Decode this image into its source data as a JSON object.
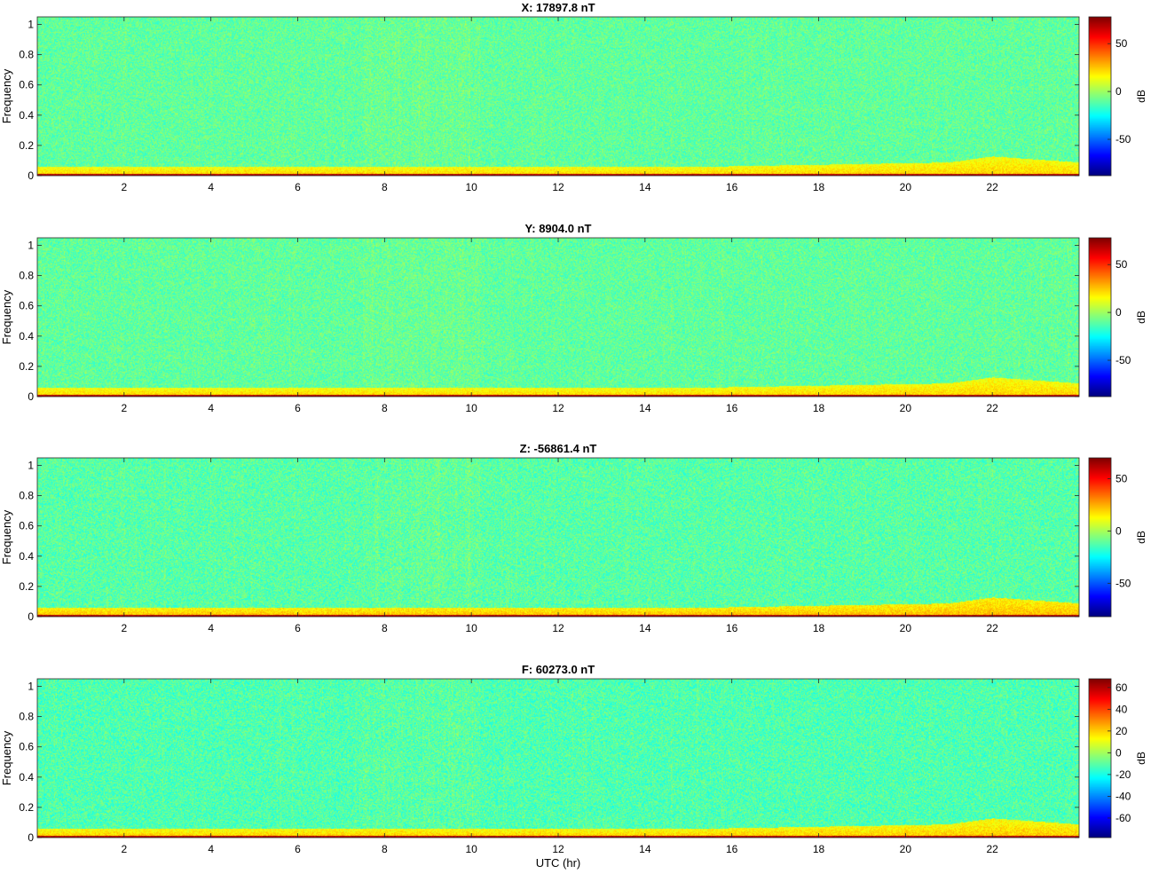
{
  "chart_data": [
    {
      "type": "heatmap",
      "title": "X: 17897.8 nT",
      "ylabel": "Frequency",
      "xlabel": "",
      "xlim": [
        0,
        24
      ],
      "ylim": [
        0,
        1.05
      ],
      "xticks": [
        "2",
        "4",
        "6",
        "8",
        "10",
        "12",
        "14",
        "16",
        "18",
        "20",
        "22"
      ],
      "yticks": [
        "0",
        "0.2",
        "0.4",
        "0.6",
        "0.8",
        "1"
      ],
      "colorbar": {
        "label": "dB",
        "range": [
          -88,
          78
        ],
        "ticks": [
          "50",
          "0",
          "-50"
        ],
        "tick_values": [
          50,
          0,
          -50
        ]
      },
      "description_values": {
        "background_db": -10,
        "lowfreq_band_db": 20,
        "dc_line_db": 75
      }
    },
    {
      "type": "heatmap",
      "title": "Y: 8904.0 nT",
      "ylabel": "Frequency",
      "xlabel": "",
      "xlim": [
        0,
        24
      ],
      "ylim": [
        0,
        1.05
      ],
      "xticks": [
        "2",
        "4",
        "6",
        "8",
        "10",
        "12",
        "14",
        "16",
        "18",
        "20",
        "22"
      ],
      "yticks": [
        "0",
        "0.2",
        "0.4",
        "0.6",
        "0.8",
        "1"
      ],
      "colorbar": {
        "label": "dB",
        "range": [
          -88,
          78
        ],
        "ticks": [
          "50",
          "0",
          "-50"
        ],
        "tick_values": [
          50,
          0,
          -50
        ]
      },
      "description_values": {
        "background_db": -10,
        "lowfreq_band_db": 20,
        "dc_line_db": 75
      }
    },
    {
      "type": "heatmap",
      "title": "Z: -56861.4 nT",
      "ylabel": "Frequency",
      "xlabel": "",
      "xlim": [
        0,
        24
      ],
      "ylim": [
        0,
        1.05
      ],
      "xticks": [
        "2",
        "4",
        "6",
        "8",
        "10",
        "12",
        "14",
        "16",
        "18",
        "20",
        "22"
      ],
      "yticks": [
        "0",
        "0.2",
        "0.4",
        "0.6",
        "0.8",
        "1"
      ],
      "colorbar": {
        "label": "dB",
        "range": [
          -82,
          70
        ],
        "ticks": [
          "50",
          "0",
          "-50"
        ],
        "tick_values": [
          50,
          0,
          -50
        ]
      },
      "description_values": {
        "background_db": -12,
        "lowfreq_band_db": 20,
        "dc_line_db": 68
      }
    },
    {
      "type": "heatmap",
      "title": "F: 60273.0 nT",
      "ylabel": "Frequency",
      "xlabel": "UTC (hr)",
      "xlim": [
        0,
        24
      ],
      "ylim": [
        0,
        1.05
      ],
      "xticks": [
        "2",
        "4",
        "6",
        "8",
        "10",
        "12",
        "14",
        "16",
        "18",
        "20",
        "22"
      ],
      "yticks": [
        "0",
        "0.2",
        "0.4",
        "0.6",
        "0.8",
        "1"
      ],
      "colorbar": {
        "label": "dB",
        "range": [
          -78,
          68
        ],
        "ticks": [
          "60",
          "40",
          "20",
          "0",
          "-20",
          "-40",
          "-60"
        ],
        "tick_values": [
          60,
          40,
          20,
          0,
          -20,
          -40,
          -60
        ]
      },
      "description_values": {
        "background_db": -12,
        "lowfreq_band_db": 18,
        "dc_line_db": 66
      }
    }
  ]
}
